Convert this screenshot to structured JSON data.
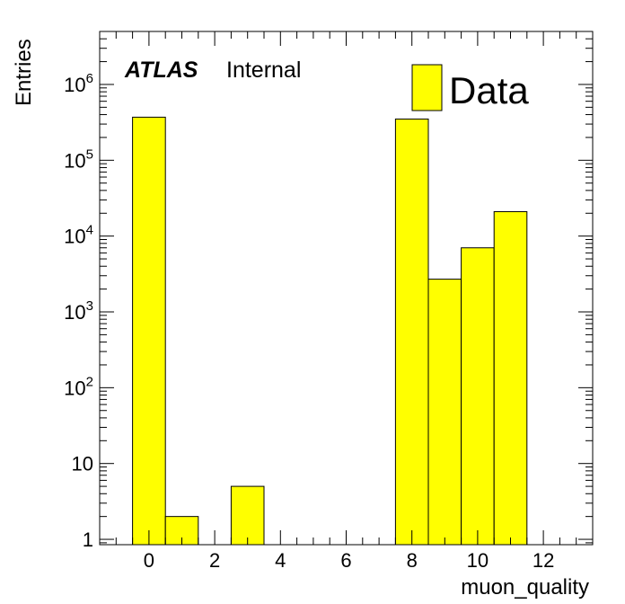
{
  "chart_data": {
    "type": "bar",
    "histogram": true,
    "x_label": "muon_quality",
    "y_label": "Entries",
    "y_scale": "log",
    "xlim": [
      -1.5,
      13.5
    ],
    "ylim": [
      0.85,
      5000000
    ],
    "x_ticks": [
      0,
      2,
      4,
      6,
      8,
      10,
      12
    ],
    "x_tick_labels": [
      "0",
      "2",
      "4",
      "6",
      "8",
      "10",
      "12"
    ],
    "y_ticks": [
      1,
      10,
      100,
      1000,
      10000,
      100000,
      1000000
    ],
    "y_tick_labels": [
      {
        "base": "1",
        "exp": ""
      },
      {
        "base": "10",
        "exp": ""
      },
      {
        "base": "10",
        "exp": "2"
      },
      {
        "base": "10",
        "exp": "3"
      },
      {
        "base": "10",
        "exp": "4"
      },
      {
        "base": "10",
        "exp": "5"
      },
      {
        "base": "10",
        "exp": "6"
      }
    ],
    "bin_width": 1,
    "bins": [
      {
        "center": 0,
        "value": 370000
      },
      {
        "center": 1,
        "value": 2
      },
      {
        "center": 3,
        "value": 5
      },
      {
        "center": 8,
        "value": 350000
      },
      {
        "center": 9,
        "value": 2700
      },
      {
        "center": 10,
        "value": 7000
      },
      {
        "center": 11,
        "value": 21000
      }
    ],
    "fill_color": "#ffff00",
    "edge_color": "#000000",
    "legend": {
      "label": "Data",
      "position": "top-right"
    },
    "annotation": {
      "experiment": "ATLAS",
      "status": "Internal"
    },
    "grid": false
  }
}
